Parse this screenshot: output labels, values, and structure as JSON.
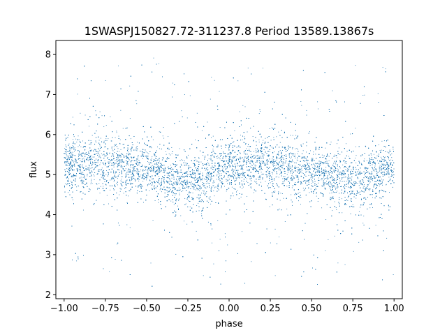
{
  "chart_data": {
    "type": "scatter",
    "title": "1SWASPJ150827.72-311237.8 Period 13589.13867s",
    "xlabel": "phase",
    "ylabel": "flux",
    "xlim": [
      -1.05,
      1.05
    ],
    "ylim": [
      1.9,
      8.35
    ],
    "xticks": [
      -1.0,
      -0.75,
      -0.5,
      -0.25,
      0.0,
      0.25,
      0.5,
      0.75,
      1.0
    ],
    "xtick_labels": [
      "−1.00",
      "−0.75",
      "−0.50",
      "−0.25",
      "0.00",
      "0.25",
      "0.50",
      "0.75",
      "1.00"
    ],
    "yticks": [
      2,
      3,
      4,
      5,
      6,
      7,
      8
    ],
    "ytick_labels": [
      "2",
      "3",
      "4",
      "5",
      "6",
      "7",
      "8"
    ],
    "grid": false,
    "marker_color": "#1f77b4",
    "series": [
      {
        "phase_range": [
          -1.0,
          1.0
        ],
        "trend": {
          "phase": [
            -1.0,
            -0.75,
            -0.5,
            -0.25,
            0.0,
            0.25,
            0.5,
            0.75,
            1.0
          ],
          "flux": [
            5.25,
            5.3,
            5.1,
            4.85,
            5.15,
            5.3,
            5.05,
            4.85,
            5.1
          ]
        },
        "flux_spread_core": 0.35,
        "flux_range": [
          2.2,
          8.1
        ]
      }
    ]
  }
}
